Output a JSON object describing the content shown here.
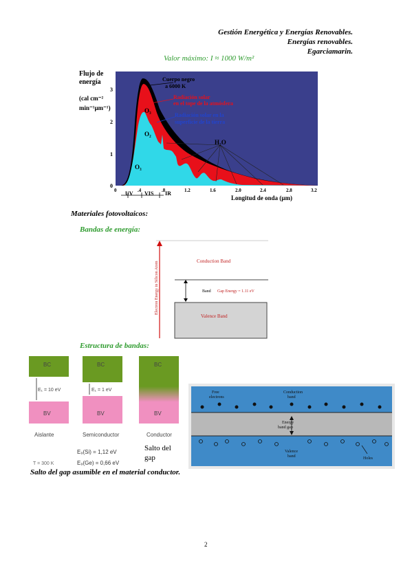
{
  "header": {
    "line1": "Gestión Energética y Energías Renovables.",
    "line2": "Energías renovables.",
    "line3": "Egarciamarin."
  },
  "solar": {
    "caption": "Valor máximo: I ≈ 1000 W/m²",
    "ylabel_1": "Flujo de",
    "ylabel_2": "energía",
    "ylabel_3": "(cal cm⁻²",
    "ylabel_4": "min⁻¹µm⁻¹)",
    "yticks": [
      "0",
      "1",
      "2",
      "3"
    ],
    "xticks": [
      "0",
      ".4",
      ".8",
      "1.2",
      "1.6",
      "2.0",
      "2.4",
      "2.8",
      "3.2"
    ],
    "xlabel": "Longitud de onda (µm)",
    "bands": [
      "UV",
      "VIS",
      "IR"
    ],
    "label_blackbody_1": "Cuerpo negro",
    "label_blackbody_2": "a 6000 K",
    "label_top_1": "Radiación solar",
    "label_top_2": "en el tope de la atmósfera",
    "label_surface_1": "Radiación solar en la",
    "label_surface_2": "superficie de la tierra",
    "o3_top": "O₃",
    "o2": "O₂",
    "o3_bottom": "O₃",
    "h2o": "H₂O",
    "colors": {
      "background": "#3a3f8c",
      "blackbody": "#000000",
      "toa": "#e8101a",
      "surface": "#30d8e8"
    }
  },
  "section_materials": "Materiales fotovoltaicos:",
  "section_bands": "Bandas de energía:",
  "band_diagram": {
    "axis_label": "Electron Energy in Silicon Atom",
    "conduction": "Conduction Band",
    "band": "Band",
    "gap": "Gap Energy = 1.11 eV",
    "valence": "Valence Band"
  },
  "section_structure": "Estructura de bandas:",
  "structure": {
    "bc": "BC",
    "bv": "BV",
    "gap_insulator": "E₁ = 10 eV",
    "gap_semi": "E₁ = 1 eV",
    "insulator": "Aislante",
    "semiconductor": "Semiconductor",
    "conductor": "Conductor",
    "temp": "T = 300 K",
    "eg_si": "E₉(Si) = 1,12 eV",
    "eg_ge": "E₉(Ge) = 0,66 eV",
    "salto_1": "Salto del",
    "salto_2": "gap"
  },
  "bands_photo": {
    "free": "Free",
    "electrons": "electrons",
    "conduction_1": "Conduction",
    "conduction_2": "band",
    "energy_1": "Energy",
    "energy_2": "band gap",
    "valence_1": "Valence",
    "valence_2": "band",
    "holes": "Holes"
  },
  "note": "Salto del gap asumible en el material conductor.",
  "page_number": "2"
}
